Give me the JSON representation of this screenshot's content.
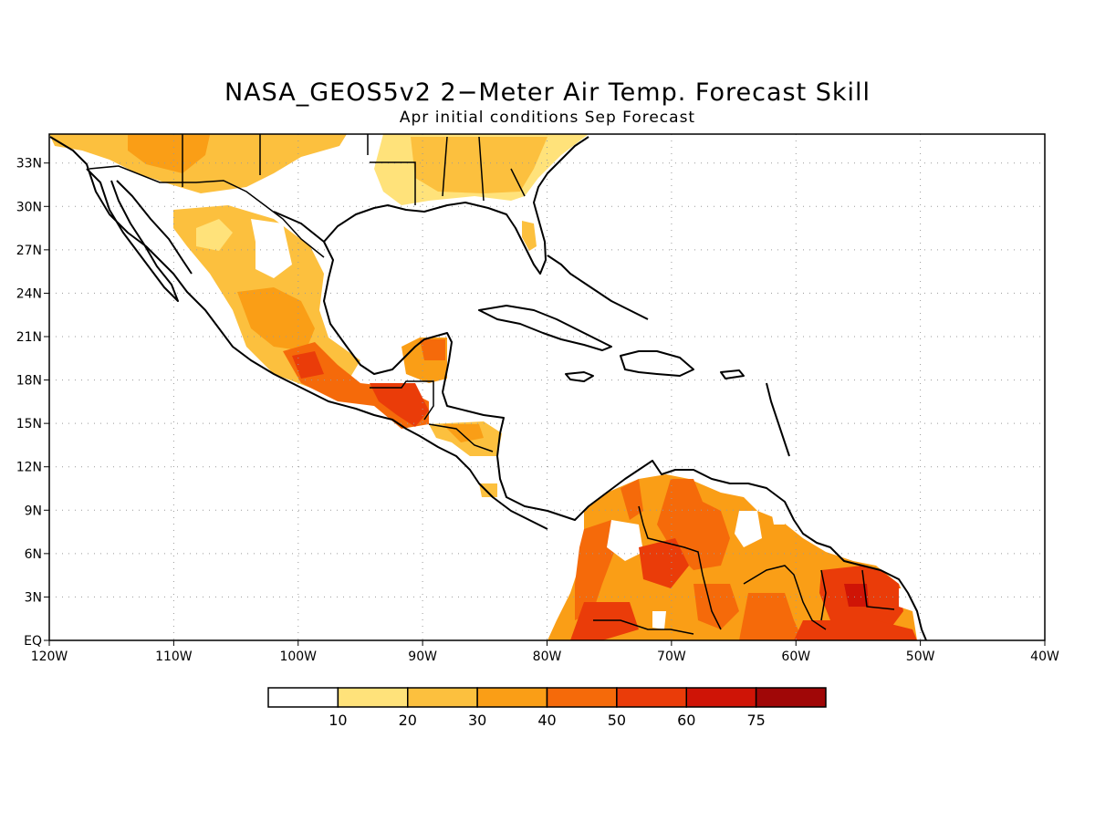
{
  "title": "NASA_GEOS5v2 2−Meter Air Temp. Forecast Skill",
  "subtitle": "Apr initial conditions  Sep Forecast",
  "map": {
    "region": "Central America, Caribbean and northern South America",
    "lon_range": [
      -120,
      -40
    ],
    "lat_range": [
      0,
      35
    ],
    "lon_tick_labels": [
      "120W",
      "110W",
      "100W",
      "90W",
      "80W",
      "70W",
      "60W",
      "50W",
      "40W"
    ],
    "lat_tick_labels": [
      "EQ",
      "3N",
      "6N",
      "9N",
      "12N",
      "15N",
      "18N",
      "21N",
      "24N",
      "27N",
      "30N",
      "33N"
    ],
    "gridlines": "dotted",
    "skill_regions": [
      {
        "name": "southern-us-west",
        "level": 20
      },
      {
        "name": "southeastern-us",
        "level": 20
      },
      {
        "name": "northern-mexico",
        "level": 30
      },
      {
        "name": "central-mexico",
        "level": 40
      },
      {
        "name": "southern-mexico-guatemala",
        "level": 60
      },
      {
        "name": "yucatan",
        "level": 40
      },
      {
        "name": "honduras-nicaragua",
        "level": 30
      },
      {
        "name": "colombia",
        "level": 50
      },
      {
        "name": "venezuela",
        "level": 40
      },
      {
        "name": "guianas",
        "level": 60
      },
      {
        "name": "northern-brazil",
        "level": 50
      }
    ]
  },
  "colorbar": {
    "labels": [
      "10",
      "20",
      "30",
      "40",
      "50",
      "60",
      "75"
    ],
    "colors": [
      "#ffffff",
      "#ffe27a",
      "#fcc03e",
      "#fa9e16",
      "#f56a0a",
      "#ea3c09",
      "#cf1406",
      "#a00707"
    ]
  }
}
